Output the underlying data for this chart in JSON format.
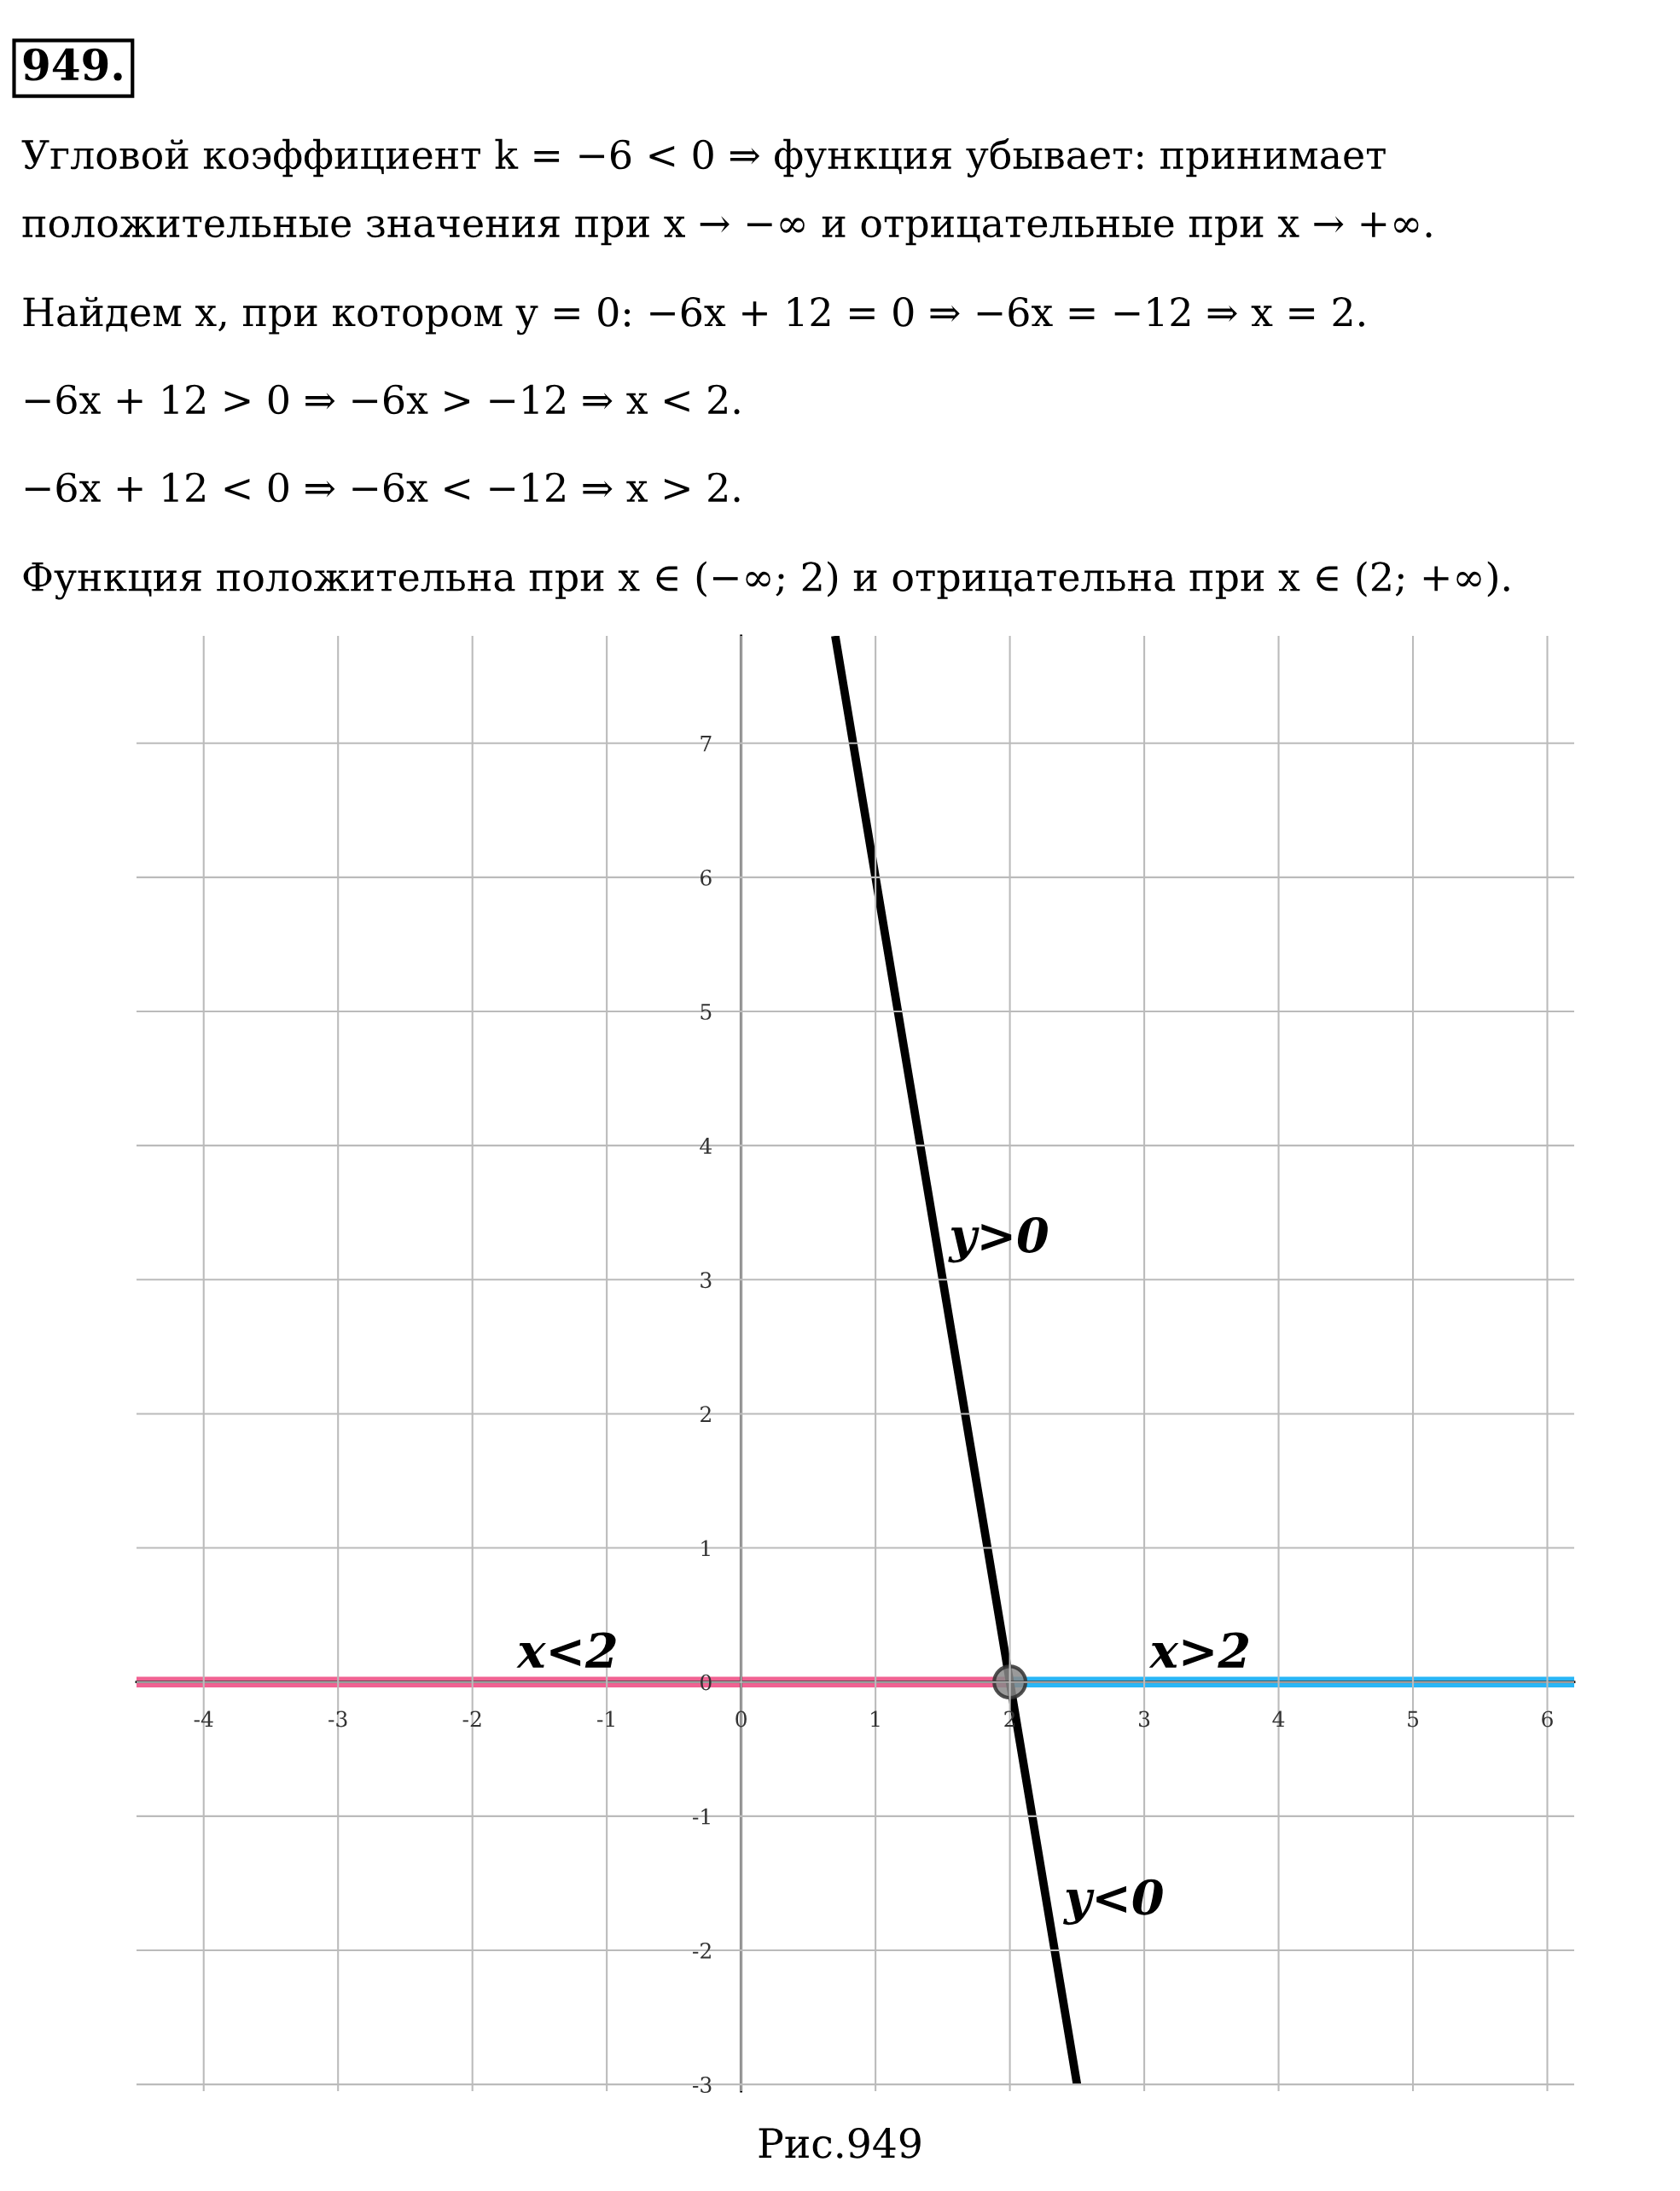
{
  "chart_data": {
    "type": "line",
    "title": "949.",
    "annotations": [
      "Угловой коэффициент k = −6 < 0 ⇒ функция убывает: принимает",
      "положительные значения при x → −∞ и отрицательные при x → +∞.",
      "Найдем x, при котором y = 0: −6x + 12 = 0 ⇒ −6x = −12 ⇒ x = 2.",
      "−6x + 12 > 0 ⇒ −6x > −12 ⇒ x < 2.",
      "−6x + 12 < 0 ⇒ −6x < −12 ⇒ x > 2.",
      "Функция положительна при x ∈ (−∞; 2) и отрицательна при x ∈ (2; +∞).",
      "y>0",
      "y<0",
      "x<2",
      "x>2",
      "Рис.949"
    ],
    "series": [
      {
        "color": "#f06292",
        "x": [
          -4.5,
          2
        ],
        "values": [
          0,
          0
        ]
      },
      {
        "color": "#29b6f6",
        "x": [
          2,
          6.2
        ],
        "values": [
          0,
          0
        ]
      },
      {
        "color": "#000000",
        "x": [
          0.7,
          2.5
        ],
        "values": [
          7.8,
          -3
        ]
      },
      {
        "type": "scatter",
        "color": "#888888",
        "x": [
          2
        ],
        "values": [
          0
        ]
      }
    ],
    "xlim": [
      -4.5,
      6.2
    ],
    "ylim": [
      -3.05,
      7.8
    ],
    "xticks": [
      -4,
      -3,
      -2,
      -1,
      0,
      1,
      2,
      3,
      4,
      5,
      6
    ],
    "yticks": [
      -3,
      -2,
      -1,
      0,
      1,
      2,
      3,
      4,
      5,
      6,
      7
    ],
    "grid": true,
    "legend": false
  }
}
